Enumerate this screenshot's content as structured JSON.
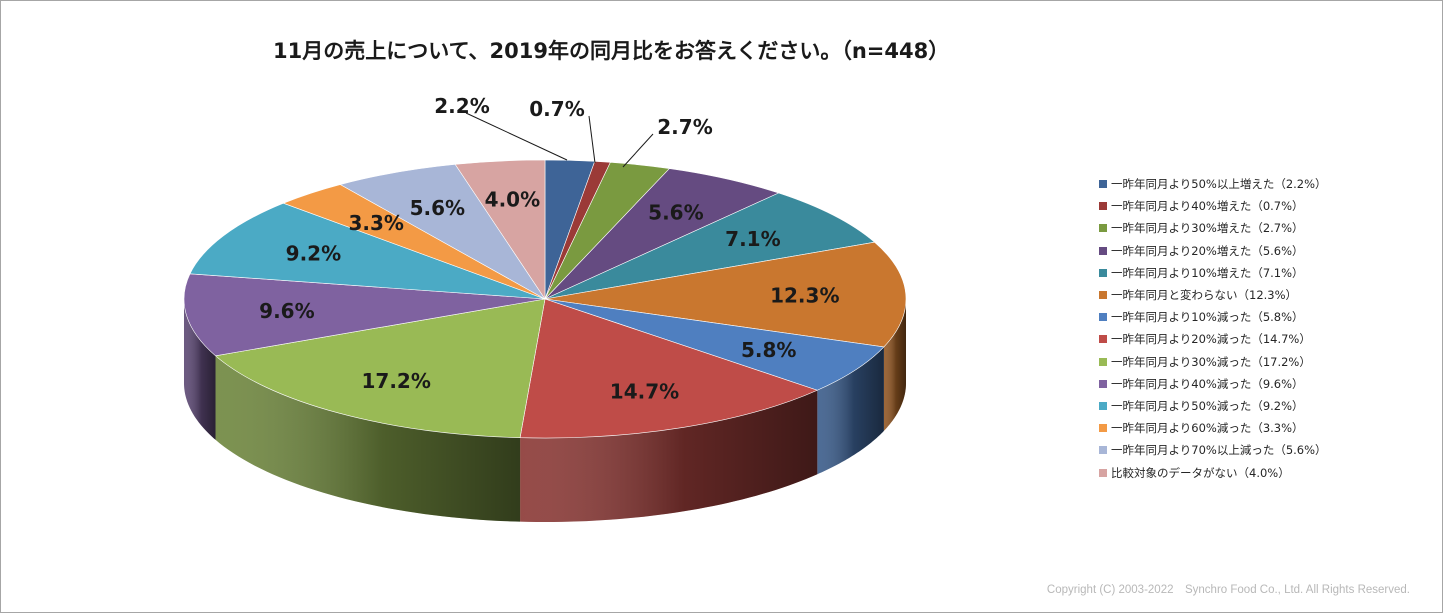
{
  "chart_data": {
    "type": "pie",
    "title": "11月の売上について、2019年の同月比をお答えください。（n=448）",
    "series": [
      {
        "name": "一昨年同月より50%以上増えた（2.2%）",
        "value": 2.2,
        "label": "2.2%",
        "color": "#3e6497"
      },
      {
        "name": "一昨年同月より40%増えた（0.7%）",
        "value": 0.7,
        "label": "0.7%",
        "color": "#9b3a37"
      },
      {
        "name": "一昨年同月より30%増えた（2.7%）",
        "value": 2.7,
        "label": "2.7%",
        "color": "#7a9a40"
      },
      {
        "name": "一昨年同月より20%増えた（5.6%）",
        "value": 5.6,
        "label": "5.6%",
        "color": "#654b81"
      },
      {
        "name": "一昨年同月より10%増えた（7.1%）",
        "value": 7.1,
        "label": "7.1%",
        "color": "#3a8a9c"
      },
      {
        "name": "一昨年同月と変わらない（12.3%）",
        "value": 12.3,
        "label": "12.3%",
        "color": "#c9772f"
      },
      {
        "name": "一昨年同月より10%減った（5.8%）",
        "value": 5.8,
        "label": "5.8%",
        "color": "#4f7fc0"
      },
      {
        "name": "一昨年同月より20%減った（14.7%）",
        "value": 14.7,
        "label": "14.7%",
        "color": "#bf4c48"
      },
      {
        "name": "一昨年同月より30%減った（17.2%）",
        "value": 17.2,
        "label": "17.2%",
        "color": "#99ba55"
      },
      {
        "name": "一昨年同月より40%減った（9.6%）",
        "value": 9.6,
        "label": "9.6%",
        "color": "#7f62a0"
      },
      {
        "name": "一昨年同月より50%減った（9.2%）",
        "value": 9.2,
        "label": "9.2%",
        "color": "#4baac5"
      },
      {
        "name": "一昨年同月より60%減った（3.3%）",
        "value": 3.3,
        "label": "3.3%",
        "color": "#f39a45"
      },
      {
        "name": "一昨年同月より70%以上減った（5.6%）",
        "value": 5.6,
        "label": "5.6%",
        "color": "#a8b6d7"
      },
      {
        "name": "比較対象のデータがない（4.0%）",
        "value": 4.0,
        "label": "4.0%",
        "color": "#d7a4a2"
      }
    ],
    "legend_position": "right",
    "style": "3d-pie"
  },
  "footer": {
    "copyright": "Copyright (C) 2003-2022　Synchro Food Co., Ltd. All Rights Reserved."
  }
}
